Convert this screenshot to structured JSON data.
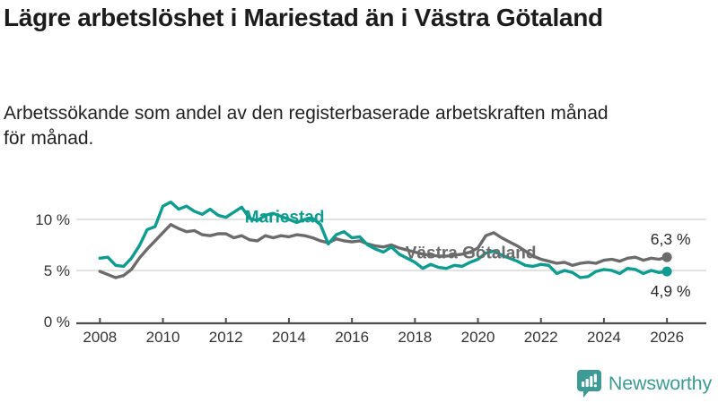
{
  "header": {
    "title": "Lägre arbetslöshet i Mariestad än i Västra Götaland",
    "subtitle": "Arbetssökande som andel av den registerbaserade arbetskraften månad för månad."
  },
  "footer": {
    "brand": "Newsworthy",
    "logo_icon": "bar-chart-speech-bubble-icon"
  },
  "colors": {
    "mariestad": "#0d9c8f",
    "vastra_gotaland": "#6b6b6b",
    "gridline": "#d9d9d9",
    "axis": "#4d4d4d",
    "tick_text": "#333333",
    "value_text": "#2b2b2b",
    "logo": "#3d9a94"
  },
  "chart_data": {
    "type": "line",
    "unit": "%",
    "grid": "horizontal",
    "xlim": [
      2007.25,
      2027.25
    ],
    "ylim": [
      0,
      12.5
    ],
    "x_ticks": [
      {
        "value": 2008,
        "label": "2008"
      },
      {
        "value": 2010,
        "label": "2010"
      },
      {
        "value": 2012,
        "label": "2012"
      },
      {
        "value": 2014,
        "label": "2014"
      },
      {
        "value": 2016,
        "label": "2016"
      },
      {
        "value": 2018,
        "label": "2018"
      },
      {
        "value": 2020,
        "label": "2020"
      },
      {
        "value": 2022,
        "label": "2022"
      },
      {
        "value": 2024,
        "label": "2024"
      },
      {
        "value": 2026,
        "label": "2026"
      }
    ],
    "y_ticks": [
      {
        "value": 0,
        "label": "0 %"
      },
      {
        "value": 5,
        "label": "5 %"
      },
      {
        "value": 10,
        "label": "10 %"
      }
    ],
    "x": [
      2008.0,
      2008.25,
      2008.5,
      2008.75,
      2009.0,
      2009.25,
      2009.5,
      2009.75,
      2010.0,
      2010.25,
      2010.5,
      2010.75,
      2011.0,
      2011.25,
      2011.5,
      2011.75,
      2012.0,
      2012.25,
      2012.5,
      2012.75,
      2013.0,
      2013.25,
      2013.5,
      2013.75,
      2014.0,
      2014.25,
      2014.5,
      2014.75,
      2015.0,
      2015.25,
      2015.5,
      2015.75,
      2016.0,
      2016.25,
      2016.5,
      2016.75,
      2017.0,
      2017.25,
      2017.5,
      2017.75,
      2018.0,
      2018.25,
      2018.5,
      2018.75,
      2019.0,
      2019.25,
      2019.5,
      2019.75,
      2020.0,
      2020.25,
      2020.5,
      2020.75,
      2021.0,
      2021.25,
      2021.5,
      2021.75,
      2022.0,
      2022.25,
      2022.5,
      2022.75,
      2023.0,
      2023.25,
      2023.5,
      2023.75,
      2024.0,
      2024.25,
      2024.5,
      2024.75,
      2025.0,
      2025.25,
      2025.5,
      2025.75,
      2026.0
    ],
    "series": [
      {
        "name": "Västra Götaland",
        "color": "#6b6b6b",
        "end_label": "6,3 %",
        "end_label_position": "above",
        "values": [
          4.9,
          4.6,
          4.3,
          4.5,
          5.1,
          6.2,
          7.1,
          7.9,
          8.7,
          9.5,
          9.1,
          8.8,
          8.9,
          8.5,
          8.4,
          8.6,
          8.6,
          8.2,
          8.4,
          8.0,
          7.9,
          8.4,
          8.2,
          8.4,
          8.3,
          8.5,
          8.4,
          8.2,
          7.9,
          7.7,
          8.1,
          7.9,
          7.8,
          7.9,
          7.6,
          7.4,
          7.3,
          7.5,
          7.2,
          7.0,
          6.8,
          6.6,
          6.5,
          6.4,
          6.4,
          6.5,
          6.6,
          6.8,
          7.2,
          8.4,
          8.7,
          8.2,
          7.8,
          7.4,
          6.9,
          6.4,
          6.1,
          5.9,
          5.7,
          5.8,
          5.5,
          5.7,
          5.8,
          5.7,
          6.0,
          6.1,
          5.9,
          6.2,
          6.3,
          6.0,
          6.2,
          6.1,
          6.3
        ]
      },
      {
        "name": "Mariestad",
        "color": "#0d9c8f",
        "end_label": "4,9 %",
        "end_label_position": "below",
        "values": [
          6.2,
          6.3,
          5.5,
          5.4,
          6.2,
          7.4,
          9.0,
          9.3,
          11.3,
          11.7,
          11.0,
          11.3,
          10.8,
          10.5,
          11.0,
          10.4,
          10.2,
          10.7,
          11.2,
          10.1,
          9.9,
          10.4,
          10.6,
          10.3,
          10.0,
          9.7,
          10.0,
          10.1,
          9.5,
          7.6,
          8.5,
          8.8,
          8.2,
          8.3,
          7.5,
          7.1,
          6.8,
          7.3,
          6.6,
          6.2,
          5.8,
          5.2,
          5.6,
          5.3,
          5.2,
          5.5,
          5.4,
          5.8,
          6.1,
          6.7,
          6.9,
          6.5,
          6.2,
          5.9,
          5.5,
          5.4,
          5.6,
          5.5,
          4.7,
          5.0,
          4.8,
          4.3,
          4.4,
          4.9,
          5.1,
          5.0,
          4.7,
          5.2,
          5.1,
          4.7,
          5.0,
          4.8,
          4.9
        ]
      }
    ],
    "annotations": [
      {
        "text": "Mariestad",
        "x": 2012.6,
        "y": 9.7,
        "color": "#0d9c8f"
      },
      {
        "text": "Västra Götaland",
        "x": 2017.7,
        "y": 6.2,
        "color": "#6b6b6b"
      }
    ]
  }
}
